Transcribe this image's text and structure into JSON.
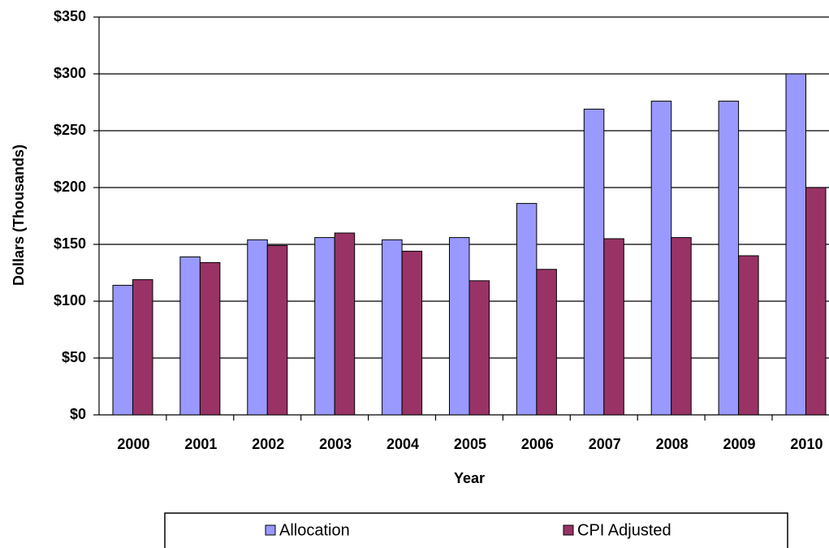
{
  "chart_data": {
    "type": "bar",
    "x_label": "Year",
    "y_label": "Dollars (Thousands)",
    "categories": [
      "2000",
      "2001",
      "2002",
      "2003",
      "2004",
      "2005",
      "2006",
      "2007",
      "2008",
      "2009",
      "2010"
    ],
    "series": [
      {
        "name": "Allocation",
        "color": "#9999ff",
        "values": [
          114,
          139,
          154,
          156,
          154,
          156,
          186,
          269,
          276,
          276,
          300
        ]
      },
      {
        "name": "CPI Adjusted",
        "color": "#993366",
        "values": [
          119,
          134,
          149,
          160,
          144,
          118,
          128,
          155,
          156,
          140,
          200
        ]
      }
    ],
    "ylim": [
      0,
      350
    ],
    "yticks": [
      {
        "value": 0,
        "label": "$0"
      },
      {
        "value": 50,
        "label": "$50"
      },
      {
        "value": 100,
        "label": "$100"
      },
      {
        "value": 150,
        "label": "$150"
      },
      {
        "value": 200,
        "label": "$200"
      },
      {
        "value": 250,
        "label": "$250"
      },
      {
        "value": 300,
        "label": "$300"
      },
      {
        "value": 350,
        "label": "$350"
      }
    ],
    "grid": true,
    "legend": "bottom"
  }
}
